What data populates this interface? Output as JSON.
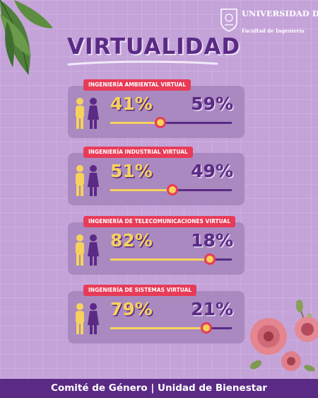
{
  "header": {
    "university": "UNIVERSIDAD DE ANTIOQUIA",
    "faculty": "Facultad de Ingeniería"
  },
  "title": "VIRTUALIDAD",
  "colors": {
    "background": "#c4a3d9",
    "women": "#f6d25c",
    "men": "#5a2a85",
    "badge": "#e83b57"
  },
  "programs": [
    {
      "name": "INGENIERÍA AMBIENTAL VIRTUAL",
      "women_label": "41%",
      "men_label": "59%",
      "women_share": 0.41
    },
    {
      "name": "INGENIERÍA INDUSTRIAL VIRTUAL",
      "women_label": "51%",
      "men_label": "49%",
      "women_share": 0.51
    },
    {
      "name": "INGENIERÍA DE TELECOMUNICACIONES VIRTUAL",
      "women_label": "82%",
      "men_label": "18%",
      "women_share": 0.82
    },
    {
      "name": "INGENIERÍA DE SISTEMAS VIRTUAL",
      "women_label": "79%",
      "men_label": "21%",
      "women_share": 0.79
    }
  ],
  "footer": "Comité de Género | Unidad de Bienestar"
}
